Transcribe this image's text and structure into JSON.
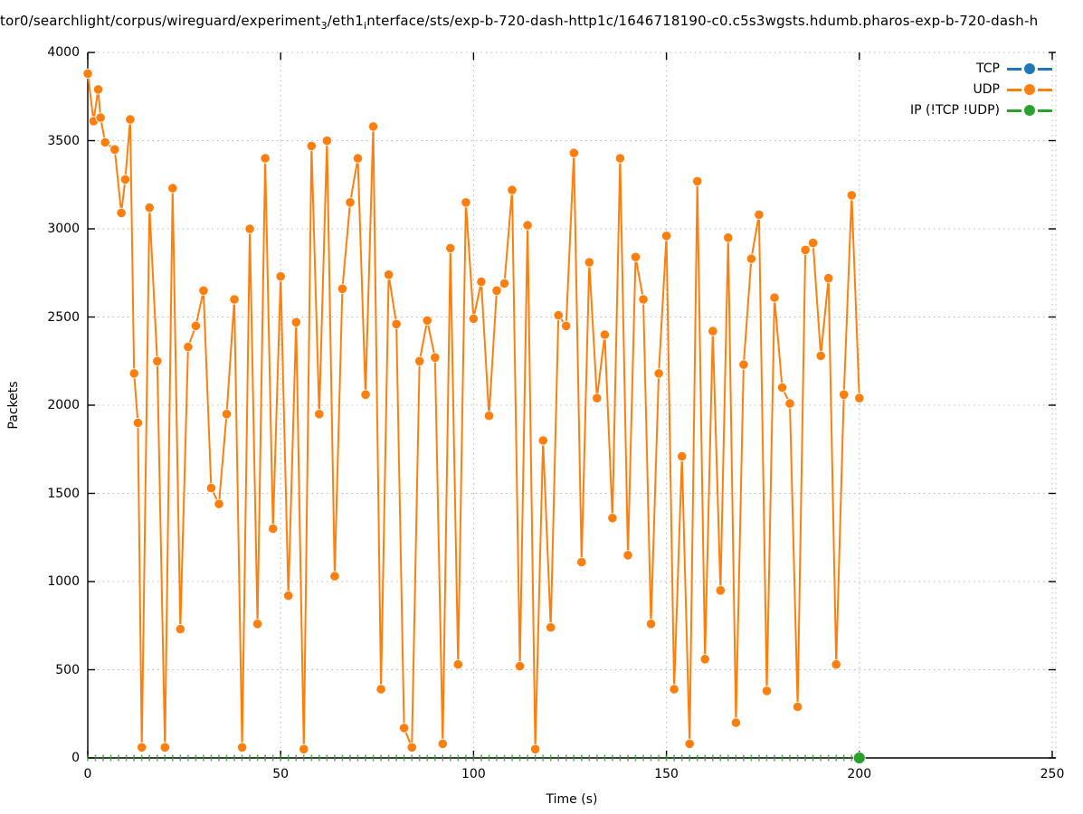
{
  "title": {
    "segments": [
      {
        "t": "tor0/searchlight/corpus/wireguard/experiment"
      },
      {
        "t": "3",
        "sub": true
      },
      {
        "t": "/eth1"
      },
      {
        "t": "i",
        "sub": true
      },
      {
        "t": "nterface/sts/exp-b-720-dash-http1c/1646718190-c0.c5s3wgsts.hdumb.pharos-exp-b-720-dash-h"
      }
    ]
  },
  "axes": {
    "x": {
      "label": "Time (s)",
      "ticks": [
        0,
        50,
        100,
        150,
        200,
        250
      ],
      "range": [
        0,
        250
      ]
    },
    "y": {
      "label": "Packets",
      "ticks": [
        0,
        500,
        1000,
        1500,
        2000,
        2500,
        3000,
        3500,
        4000
      ],
      "range": [
        0,
        4000
      ]
    }
  },
  "legend": [
    {
      "label": "TCP",
      "color": "#1f77b4"
    },
    {
      "label": "UDP",
      "color": "#ff7f0e"
    },
    {
      "label": "IP (!TCP  !UDP)",
      "color": "#2ca02c"
    }
  ],
  "chart_data": {
    "type": "line",
    "xlabel": "Time (s)",
    "ylabel": "Packets",
    "xlim": [
      0,
      250
    ],
    "ylim": [
      0,
      4000
    ],
    "grid": true,
    "legend_position": "top-right-inside",
    "series": [
      {
        "name": "TCP",
        "color": "#1f77b4",
        "marker": "filled-circle",
        "points": []
      },
      {
        "name": "UDP",
        "color": "#ff7f0e",
        "marker": "filled-circle",
        "points": [
          [
            0,
            3880
          ],
          [
            1.5,
            3610
          ],
          [
            2.7,
            3790
          ],
          [
            3.3,
            3630
          ],
          [
            4.5,
            3490
          ],
          [
            7,
            3450
          ],
          [
            8.7,
            3090
          ],
          [
            9.7,
            3280
          ],
          [
            11,
            3620
          ],
          [
            12,
            2180
          ],
          [
            13,
            1900
          ],
          [
            14,
            60
          ],
          [
            16,
            3120
          ],
          [
            18,
            2250
          ],
          [
            20,
            60
          ],
          [
            22,
            3230
          ],
          [
            24,
            730
          ],
          [
            26,
            2330
          ],
          [
            28,
            2450
          ],
          [
            30,
            2650
          ],
          [
            32,
            1530
          ],
          [
            34,
            1440
          ],
          [
            36,
            1950
          ],
          [
            38,
            2600
          ],
          [
            40,
            60
          ],
          [
            42,
            3000
          ],
          [
            44,
            760
          ],
          [
            46,
            3400
          ],
          [
            48,
            1300
          ],
          [
            50,
            2730
          ],
          [
            52,
            920
          ],
          [
            54,
            2470
          ],
          [
            56,
            50
          ],
          [
            58,
            3470
          ],
          [
            60,
            1950
          ],
          [
            62,
            3500
          ],
          [
            64,
            1030
          ],
          [
            66,
            2660
          ],
          [
            68,
            3150
          ],
          [
            70,
            3400
          ],
          [
            72,
            2060
          ],
          [
            74,
            3580
          ],
          [
            76,
            390
          ],
          [
            78,
            2740
          ],
          [
            80,
            2460
          ],
          [
            82,
            170
          ],
          [
            84,
            60
          ],
          [
            86,
            2250
          ],
          [
            88,
            2480
          ],
          [
            90,
            2270
          ],
          [
            92,
            80
          ],
          [
            94,
            2890
          ],
          [
            96,
            530
          ],
          [
            98,
            3150
          ],
          [
            100,
            2490
          ],
          [
            102,
            2700
          ],
          [
            104,
            1940
          ],
          [
            106,
            2650
          ],
          [
            108,
            2690
          ],
          [
            110,
            3220
          ],
          [
            112,
            520
          ],
          [
            114,
            3020
          ],
          [
            116,
            50
          ],
          [
            118,
            1800
          ],
          [
            120,
            740
          ],
          [
            122,
            2510
          ],
          [
            124,
            2450
          ],
          [
            126,
            3430
          ],
          [
            128,
            1110
          ],
          [
            130,
            2810
          ],
          [
            132,
            2040
          ],
          [
            134,
            2400
          ],
          [
            136,
            1360
          ],
          [
            138,
            3400
          ],
          [
            140,
            1150
          ],
          [
            142,
            2840
          ],
          [
            144,
            2600
          ],
          [
            146,
            760
          ],
          [
            148,
            2180
          ],
          [
            150,
            2960
          ],
          [
            152,
            390
          ],
          [
            154,
            1710
          ],
          [
            156,
            80
          ],
          [
            158,
            3270
          ],
          [
            160,
            560
          ],
          [
            162,
            2420
          ],
          [
            164,
            950
          ],
          [
            166,
            2950
          ],
          [
            168,
            200
          ],
          [
            170,
            2230
          ],
          [
            172,
            2830
          ],
          [
            174,
            3080
          ],
          [
            176,
            380
          ],
          [
            178,
            2610
          ],
          [
            180,
            2100
          ],
          [
            182,
            2010
          ],
          [
            184,
            290
          ],
          [
            186,
            2880
          ],
          [
            188,
            2920
          ],
          [
            190,
            2280
          ],
          [
            192,
            2720
          ],
          [
            194,
            530
          ],
          [
            196,
            2060
          ],
          [
            198,
            3190
          ],
          [
            200,
            2040
          ]
        ]
      },
      {
        "name": "IP (!TCP  !UDP)",
        "color": "#2ca02c",
        "marker": "filled-circle",
        "constant_value": 0,
        "x_range": [
          0,
          200
        ],
        "sample_interval_s": 2,
        "last_point": [
          200,
          0
        ]
      }
    ]
  }
}
